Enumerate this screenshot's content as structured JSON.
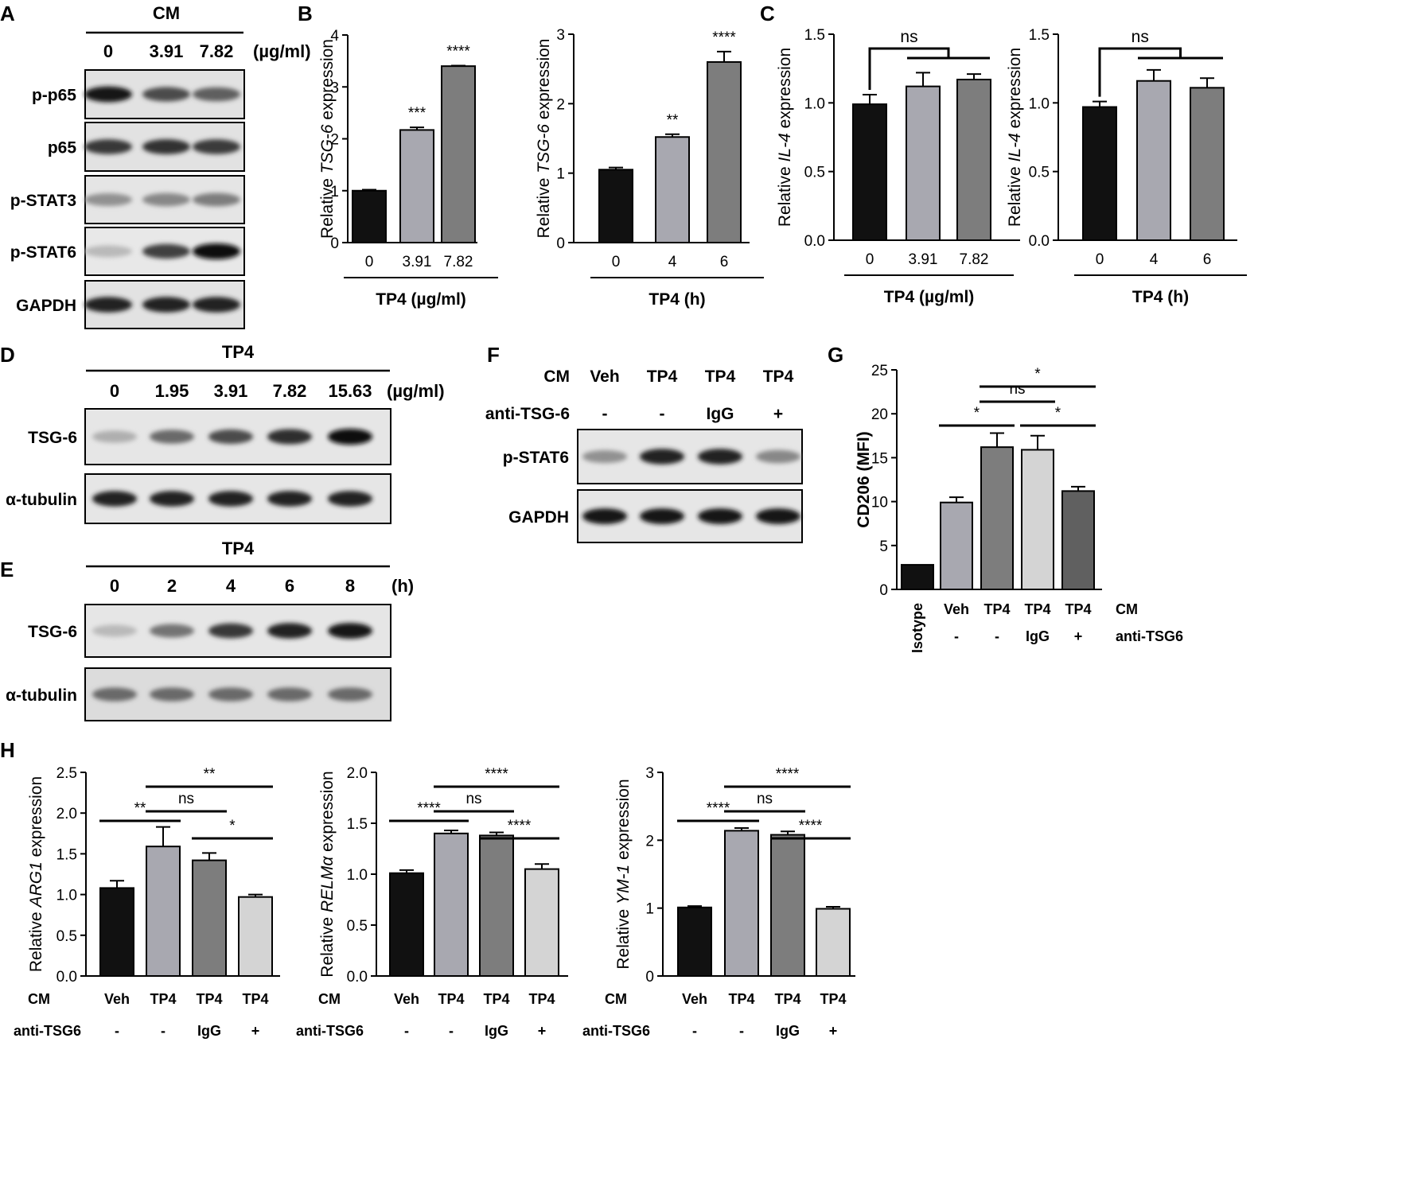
{
  "panel_letters": [
    "A",
    "B",
    "C",
    "D",
    "E",
    "F",
    "G",
    "H"
  ],
  "panelA": {
    "header": "CM",
    "unit": "(µg/ml)",
    "lanes": [
      "0",
      "3.91",
      "7.82"
    ],
    "rows": [
      {
        "label": "p-p65",
        "bands": [
          0.95,
          0.7,
          0.6
        ],
        "bg": "#e2e2e2"
      },
      {
        "label": "p65",
        "bands": [
          0.8,
          0.82,
          0.78
        ],
        "bg": "#e2e2e2"
      },
      {
        "label": "p-STAT3",
        "bands": [
          0.35,
          0.4,
          0.45
        ],
        "bg": "#e5e5e5"
      },
      {
        "label": "p-STAT6",
        "bands": [
          0.15,
          0.75,
          1.0
        ],
        "bg": "#e8e8e8"
      },
      {
        "label": "GAPDH",
        "bands": [
          0.9,
          0.9,
          0.9
        ],
        "bg": "#e2e2e2"
      }
    ]
  },
  "panelD": {
    "header": "TP4",
    "unit": "(µg/ml)",
    "lanes": [
      "0",
      "1.95",
      "3.91",
      "7.82",
      "15.63"
    ],
    "rows": [
      {
        "label": "TSG-6",
        "bands": [
          0.2,
          0.55,
          0.7,
          0.85,
          1.0
        ],
        "bg": "#e6e6e6"
      },
      {
        "label": "α-tubulin",
        "bands": [
          0.9,
          0.9,
          0.9,
          0.9,
          0.9
        ],
        "bg": "#e6e6e6"
      }
    ]
  },
  "panelE": {
    "header": "TP4",
    "unit": "(h)",
    "lanes": [
      "0",
      "2",
      "4",
      "6",
      "8"
    ],
    "rows": [
      {
        "label": "TSG-6",
        "bands": [
          0.15,
          0.5,
          0.8,
          0.9,
          0.95
        ],
        "bg": "#e6e6e6"
      },
      {
        "label": "α-tubulin",
        "bands": [
          0.55,
          0.55,
          0.55,
          0.55,
          0.55
        ],
        "bg": "#dcdcdc"
      }
    ]
  },
  "panelF": {
    "row1_label": "CM",
    "row1": [
      "Veh",
      "TP4",
      "TP4",
      "TP4"
    ],
    "row2_label": "anti-TSG-6",
    "row2": [
      "-",
      "-",
      "IgG",
      "+"
    ],
    "rows": [
      {
        "label": "p-STAT6",
        "bands": [
          0.35,
          0.9,
          0.9,
          0.4
        ],
        "bg": "#e6e6e6"
      },
      {
        "label": "GAPDH",
        "bands": [
          0.95,
          0.95,
          0.95,
          0.95
        ],
        "bg": "#e6e6e6"
      }
    ]
  },
  "chart_data": [
    {
      "panel": "B-left",
      "type": "bar",
      "categories": [
        "0",
        "3.91",
        "7.82"
      ],
      "values": [
        1.0,
        2.17,
        3.4
      ],
      "errors": [
        0.02,
        0.05,
        0.01
      ],
      "ylabel_pre": "Relative ",
      "ylabel_italic": "TSG-6",
      "ylabel_post": " expression",
      "ylim": [
        0,
        4
      ],
      "yticks": [
        "0",
        "1",
        "2",
        "3",
        "4"
      ],
      "xlabel": "TP4 (µg/ml)",
      "sig": [
        "",
        "***",
        "****"
      ],
      "colors": [
        "#111111",
        "#a8a8b0",
        "#7d7d7d"
      ]
    },
    {
      "panel": "B-right",
      "type": "bar",
      "categories": [
        "0",
        "4",
        "6"
      ],
      "values": [
        1.05,
        1.52,
        2.6
      ],
      "errors": [
        0.03,
        0.04,
        0.15
      ],
      "ylabel_pre": "Relative ",
      "ylabel_italic": "TSG-6",
      "ylabel_post": " expression",
      "ylim": [
        0,
        3
      ],
      "yticks": [
        "0",
        "1",
        "2",
        "3"
      ],
      "xlabel": "TP4 (h)",
      "sig": [
        "",
        "**",
        "****"
      ],
      "colors": [
        "#111111",
        "#a8a8b0",
        "#7d7d7d"
      ]
    },
    {
      "panel": "C-left",
      "type": "bar",
      "categories": [
        "0",
        "3.91",
        "7.82"
      ],
      "values": [
        0.99,
        1.12,
        1.17
      ],
      "errors": [
        0.07,
        0.1,
        0.04
      ],
      "ylabel_pre": "Relative ",
      "ylabel_italic": "IL-4",
      "ylabel_post": " expression",
      "ylim": [
        0,
        1.5
      ],
      "yticks": [
        "0.0",
        "0.5",
        "1.0",
        "1.5"
      ],
      "xlabel": "TP4 (µg/ml)",
      "ns_label": "ns",
      "colors": [
        "#111111",
        "#a8a8b0",
        "#7d7d7d"
      ]
    },
    {
      "panel": "C-right",
      "type": "bar",
      "categories": [
        "0",
        "4",
        "6"
      ],
      "values": [
        0.97,
        1.16,
        1.11
      ],
      "errors": [
        0.04,
        0.08,
        0.07
      ],
      "ylabel_pre": "Relative ",
      "ylabel_italic": "IL-4",
      "ylabel_post": " expression",
      "ylim": [
        0,
        1.5
      ],
      "yticks": [
        "0.0",
        "0.5",
        "1.0",
        "1.5"
      ],
      "xlabel": "TP4 (h)",
      "ns_label": "ns",
      "colors": [
        "#111111",
        "#a8a8b0",
        "#7d7d7d"
      ]
    },
    {
      "panel": "G",
      "type": "bar",
      "categories": [
        "Isotype",
        "Veh",
        "TP4",
        "TP4",
        "TP4"
      ],
      "row2": [
        "",
        "-",
        "-",
        "IgG",
        "+"
      ],
      "row1_label": "CM",
      "row2_label": "anti-TSG6",
      "values": [
        2.8,
        9.9,
        16.2,
        15.9,
        11.2
      ],
      "errors": [
        0,
        0.6,
        1.6,
        1.6,
        0.5
      ],
      "ylabel": "CD206 (MFI)",
      "ylim": [
        0,
        25
      ],
      "yticks": [
        "0",
        "5",
        "10",
        "15",
        "20",
        "25"
      ],
      "comparisons": [
        {
          "from": 1,
          "to": 2,
          "label": "*"
        },
        {
          "from": 2,
          "to": 3,
          "label": "ns"
        },
        {
          "from": 3,
          "to": 4,
          "label": "*"
        },
        {
          "from": 2,
          "to": 4,
          "label": "*"
        }
      ],
      "colors": [
        "#111111",
        "#a8a8b0",
        "#7d7d7d",
        "#d4d4d4",
        "#606060"
      ]
    },
    {
      "panel": "H-1",
      "type": "bar",
      "categories": [
        "Veh",
        "TP4",
        "TP4",
        "TP4"
      ],
      "row2": [
        "-",
        "-",
        "IgG",
        "+"
      ],
      "row1_label": "CM",
      "row2_label": "anti-TSG6",
      "values": [
        1.08,
        1.59,
        1.42,
        0.97
      ],
      "errors": [
        0.09,
        0.24,
        0.09,
        0.03
      ],
      "ylabel_pre": "Relative ",
      "ylabel_italic": "ARG1",
      "ylabel_post": " expression",
      "ylim": [
        0,
        2.5
      ],
      "yticks": [
        "0.0",
        "0.5",
        "1.0",
        "1.5",
        "2.0",
        "2.5"
      ],
      "comparisons": [
        {
          "from": 0,
          "to": 1,
          "label": "**"
        },
        {
          "from": 1,
          "to": 2,
          "label": "ns"
        },
        {
          "from": 2,
          "to": 3,
          "label": "*"
        },
        {
          "from": 1,
          "to": 3,
          "label": "**"
        }
      ],
      "colors": [
        "#111111",
        "#a8a8b0",
        "#7d7d7d",
        "#d4d4d4"
      ]
    },
    {
      "panel": "H-2",
      "type": "bar",
      "categories": [
        "Veh",
        "TP4",
        "TP4",
        "TP4"
      ],
      "row2": [
        "-",
        "-",
        "IgG",
        "+"
      ],
      "row1_label": "CM",
      "row2_label": "anti-TSG6",
      "values": [
        1.01,
        1.4,
        1.38,
        1.05
      ],
      "errors": [
        0.03,
        0.03,
        0.03,
        0.05
      ],
      "ylabel_pre": "Relative ",
      "ylabel_italic": "RELMα",
      "ylabel_post": " expression",
      "ylim": [
        0,
        2.0
      ],
      "yticks": [
        "0.0",
        "0.5",
        "1.0",
        "1.5",
        "2.0"
      ],
      "comparisons": [
        {
          "from": 0,
          "to": 1,
          "label": "****"
        },
        {
          "from": 1,
          "to": 2,
          "label": "ns"
        },
        {
          "from": 2,
          "to": 3,
          "label": "****"
        },
        {
          "from": 1,
          "to": 3,
          "label": "****"
        }
      ],
      "colors": [
        "#111111",
        "#a8a8b0",
        "#7d7d7d",
        "#d4d4d4"
      ]
    },
    {
      "panel": "H-3",
      "type": "bar",
      "categories": [
        "Veh",
        "TP4",
        "TP4",
        "TP4"
      ],
      "row2": [
        "-",
        "-",
        "IgG",
        "+"
      ],
      "row1_label": "CM",
      "row2_label": "anti-TSG6",
      "values": [
        1.01,
        2.14,
        2.08,
        0.99
      ],
      "errors": [
        0.02,
        0.04,
        0.05,
        0.03
      ],
      "ylabel_pre": "Relative ",
      "ylabel_italic": "YM-1",
      "ylabel_post": " expression",
      "ylim": [
        0,
        3
      ],
      "yticks": [
        "0",
        "1",
        "2",
        "3"
      ],
      "comparisons": [
        {
          "from": 0,
          "to": 1,
          "label": "****"
        },
        {
          "from": 1,
          "to": 2,
          "label": "ns"
        },
        {
          "from": 2,
          "to": 3,
          "label": "****"
        },
        {
          "from": 1,
          "to": 3,
          "label": "****"
        }
      ],
      "colors": [
        "#111111",
        "#a8a8b0",
        "#7d7d7d",
        "#d4d4d4"
      ]
    }
  ]
}
